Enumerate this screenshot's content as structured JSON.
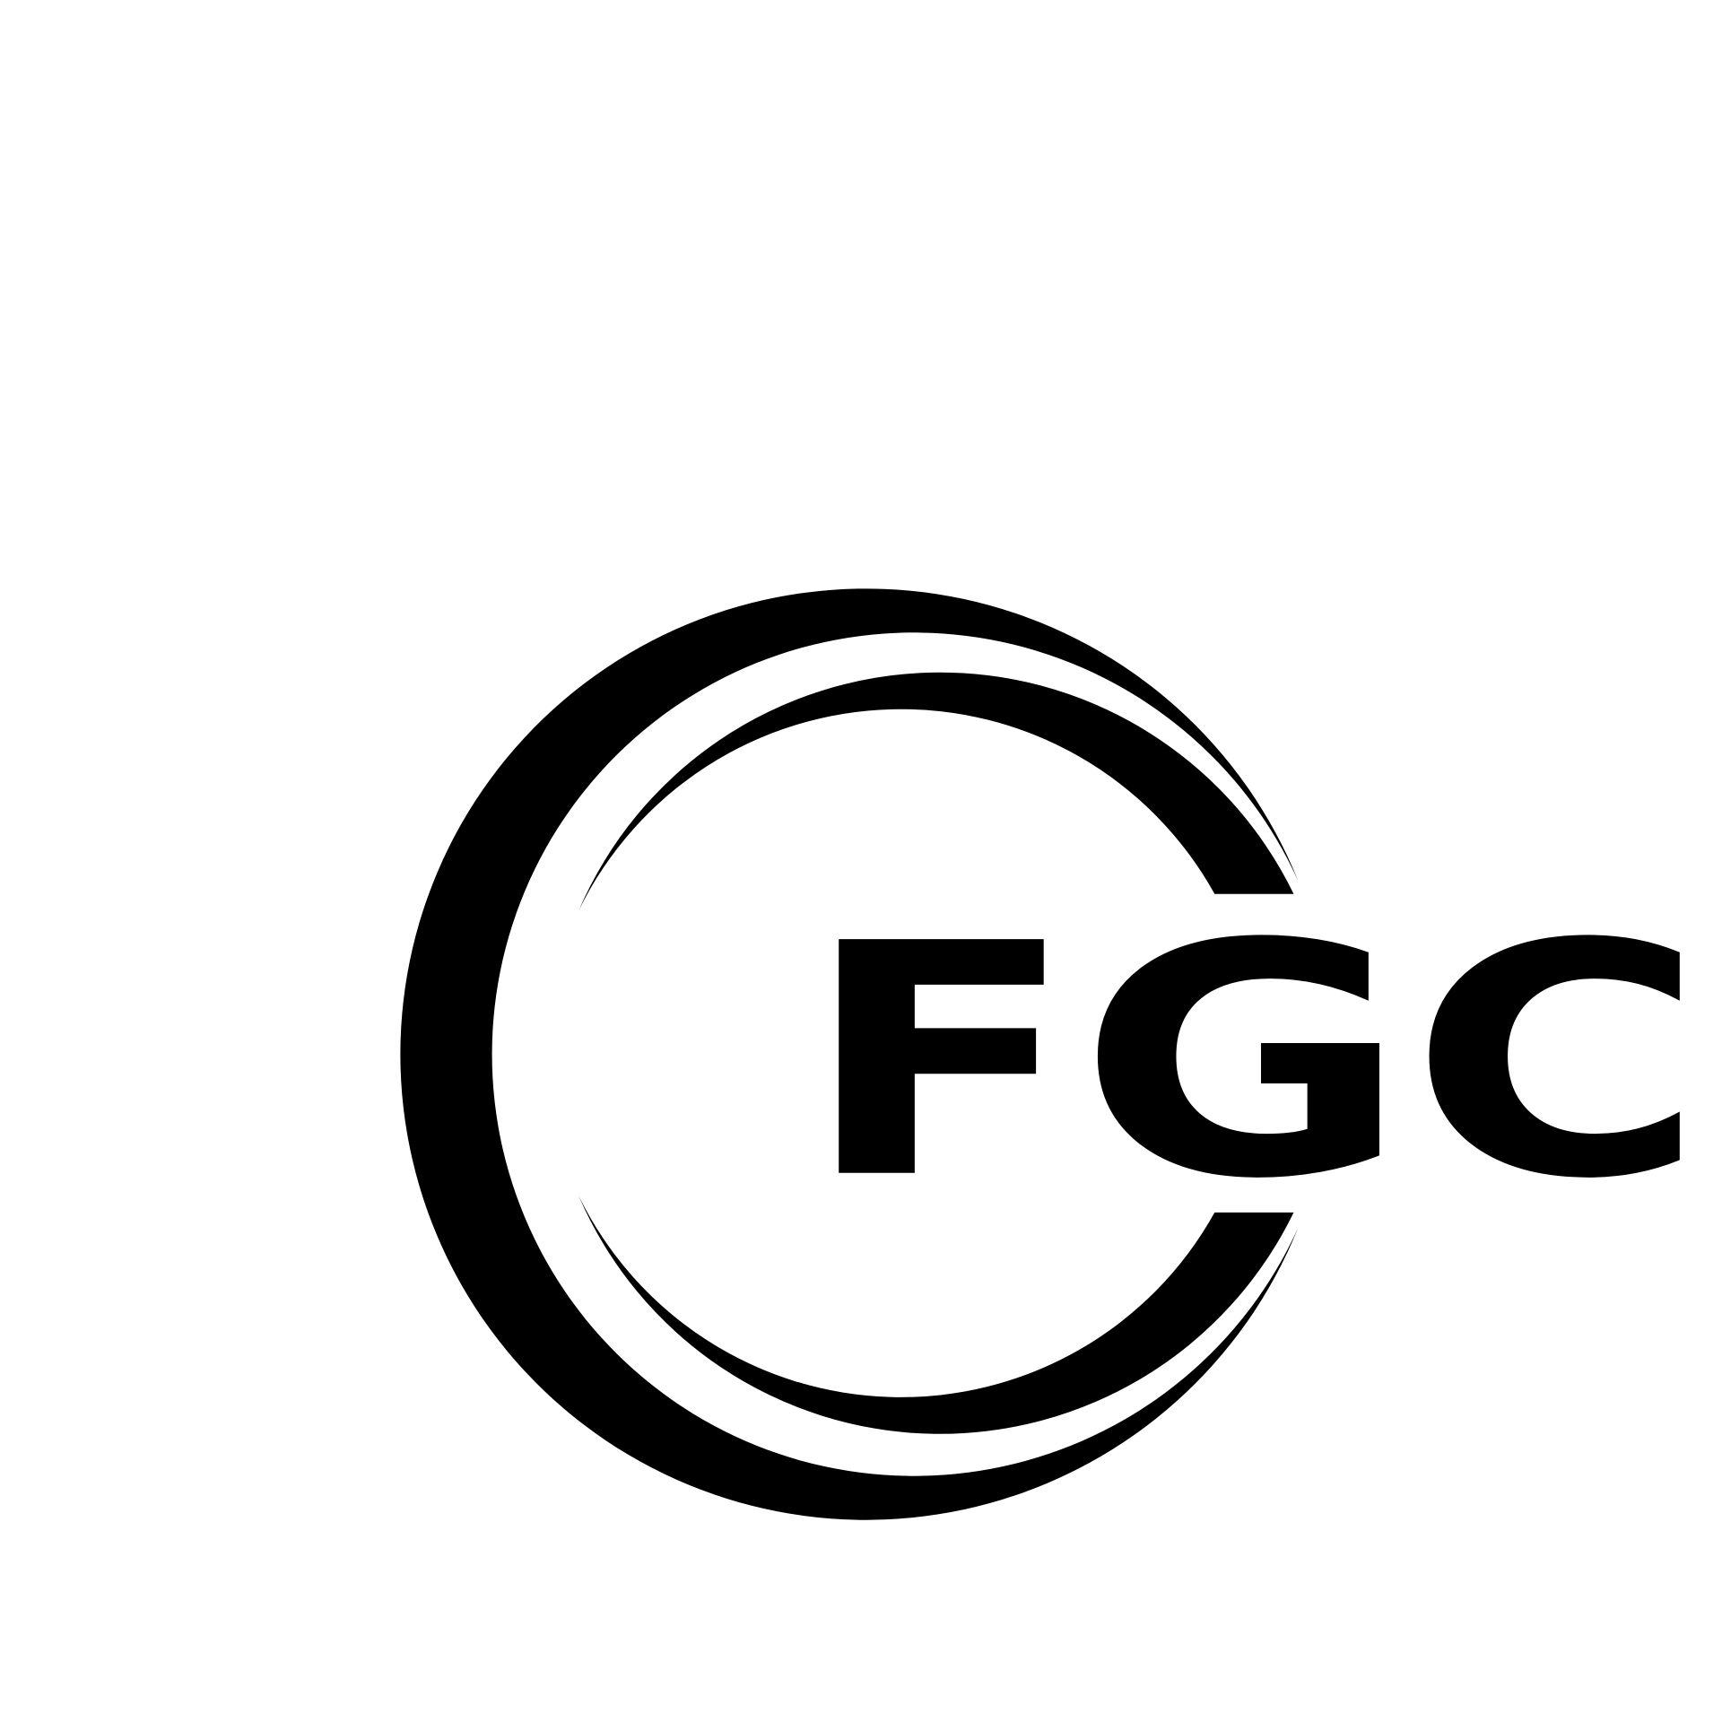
{
  "logo": {
    "text": "FGC"
  }
}
